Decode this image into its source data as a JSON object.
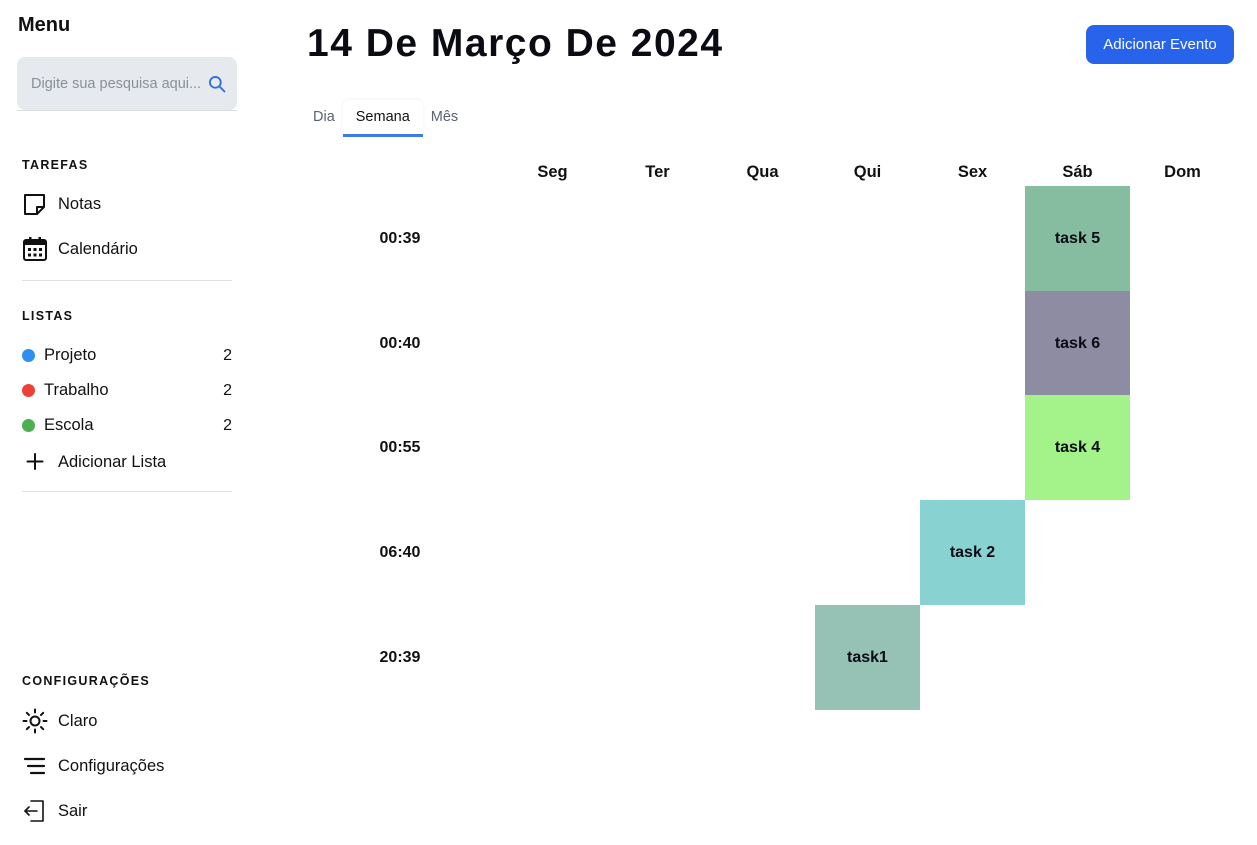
{
  "sidebar": {
    "title": "Menu",
    "search": {
      "placeholder": "Digite sua pesquisa aqui...",
      "value": ""
    },
    "tasks_section": {
      "label": "TAREFAS",
      "items": [
        {
          "label": "Notas",
          "icon": "sticky-note-icon"
        },
        {
          "label": "Calendário",
          "icon": "calendar-icon"
        }
      ]
    },
    "lists_section": {
      "label": "LISTAS",
      "items": [
        {
          "label": "Projeto",
          "count": "2",
          "color": "#2f8ff0"
        },
        {
          "label": "Trabalho",
          "count": "2",
          "color": "#ea4336"
        },
        {
          "label": "Escola",
          "count": "2",
          "color": "#4caf50"
        }
      ],
      "add_label": "Adicionar Lista"
    },
    "settings_section": {
      "label": "CONFIGURAÇÕES",
      "items": [
        {
          "label": "Claro",
          "icon": "sun-icon"
        },
        {
          "label": "Configurações",
          "icon": "settings-lines-icon"
        },
        {
          "label": "Sair",
          "icon": "logout-icon"
        }
      ]
    }
  },
  "header": {
    "title": "14 De Março De 2024",
    "add_event_label": "Adicionar Evento",
    "accent_color": "#2763eb"
  },
  "view_tabs": [
    {
      "label": "Dia",
      "active": false
    },
    {
      "label": "Semana",
      "active": true
    },
    {
      "label": "Mês",
      "active": false
    }
  ],
  "week": {
    "days": [
      "Seg",
      "Ter",
      "Qua",
      "Qui",
      "Sex",
      "Sáb",
      "Dom"
    ],
    "times": [
      "00:39",
      "00:40",
      "00:55",
      "06:40",
      "20:39"
    ],
    "events": [
      {
        "title": "task 5",
        "day": "Sáb",
        "time": "00:39",
        "color": "#86bda0"
      },
      {
        "title": "task 6",
        "day": "Sáb",
        "time": "00:40",
        "color": "#8e8ca3"
      },
      {
        "title": "task 4",
        "day": "Sáb",
        "time": "00:55",
        "color": "#a3f28a"
      },
      {
        "title": "task 2",
        "day": "Sex",
        "time": "06:40",
        "color": "#88d2d2"
      },
      {
        "title": "task1",
        "day": "Qui",
        "time": "20:39",
        "color": "#95c2b4"
      }
    ]
  }
}
